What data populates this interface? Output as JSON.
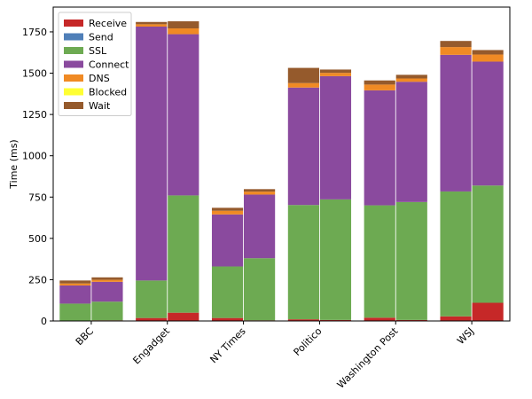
{
  "chart_data": {
    "type": "bar",
    "stacked": true,
    "title": "",
    "xlabel": "",
    "ylabel": "Time (ms)",
    "ylim": [
      0,
      1900
    ],
    "yticks": [
      0,
      250,
      500,
      750,
      1000,
      1250,
      1500,
      1750
    ],
    "categories": [
      "BBC",
      "Engadget",
      "NY Times",
      "Politico",
      "Washington Post",
      "WSJ"
    ],
    "bars_per_category": 2,
    "legend_position": "top-left",
    "series": [
      {
        "name": "Receive",
        "color": "#c62828",
        "values": [
          [
            2,
            4
          ],
          [
            18,
            50
          ],
          [
            18,
            4
          ],
          [
            10,
            6
          ],
          [
            20,
            6
          ],
          [
            28,
            110
          ]
        ]
      },
      {
        "name": "Send",
        "color": "#4f7fb8",
        "values": [
          [
            0,
            0
          ],
          [
            0,
            0
          ],
          [
            0,
            0
          ],
          [
            0,
            0
          ],
          [
            0,
            0
          ],
          [
            0,
            0
          ]
        ]
      },
      {
        "name": "SSL",
        "color": "#6daa52",
        "values": [
          [
            103,
            113
          ],
          [
            227,
            710
          ],
          [
            312,
            376
          ],
          [
            692,
            730
          ],
          [
            680,
            714
          ],
          [
            756,
            710
          ]
        ]
      },
      {
        "name": "Connect",
        "color": "#8a4a9e",
        "values": [
          [
            110,
            120
          ],
          [
            1537,
            976
          ],
          [
            315,
            385
          ],
          [
            711,
            746
          ],
          [
            696,
            728
          ],
          [
            827,
            750
          ]
        ]
      },
      {
        "name": "DNS",
        "color": "#f08a24",
        "values": [
          [
            12,
            12
          ],
          [
            14,
            35
          ],
          [
            22,
            18
          ],
          [
            27,
            20
          ],
          [
            35,
            20
          ],
          [
            47,
            43
          ]
        ]
      },
      {
        "name": "Blocked",
        "color": "#ffff33",
        "values": [
          [
            0,
            0
          ],
          [
            0,
            0
          ],
          [
            0,
            0
          ],
          [
            0,
            0
          ],
          [
            0,
            0
          ],
          [
            0,
            0
          ]
        ]
      },
      {
        "name": "Wait",
        "color": "#955a2c",
        "values": [
          [
            18,
            15
          ],
          [
            14,
            43
          ],
          [
            18,
            15
          ],
          [
            92,
            20
          ],
          [
            25,
            22
          ],
          [
            37,
            27
          ]
        ]
      }
    ]
  }
}
